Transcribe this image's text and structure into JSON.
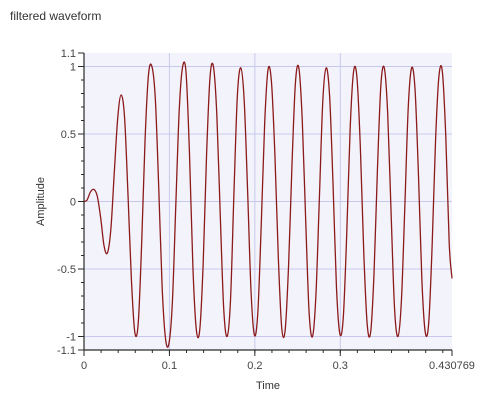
{
  "window": {
    "title": "filtered waveform"
  },
  "chart_data": {
    "type": "line",
    "title": "filtered waveform",
    "xlabel": "Time",
    "ylabel": "Amplitude",
    "xlim": [
      0,
      0.430769
    ],
    "ylim": [
      -1.1,
      1.1
    ],
    "x_ticks": [
      {
        "value": 0,
        "label": "0"
      },
      {
        "value": 0.1,
        "label": "0.1"
      },
      {
        "value": 0.2,
        "label": "0.2"
      },
      {
        "value": 0.3,
        "label": "0.3"
      },
      {
        "value": 0.430769,
        "label": "0.430769"
      }
    ],
    "y_ticks": [
      {
        "value": -1.1,
        "label": "-1.1"
      },
      {
        "value": -1,
        "label": "-1"
      },
      {
        "value": -0.5,
        "label": "-0.5"
      },
      {
        "value": 0,
        "label": "0"
      },
      {
        "value": 0.5,
        "label": "0.5"
      },
      {
        "value": 1,
        "label": "1"
      },
      {
        "value": 1.1,
        "label": "1.1"
      }
    ],
    "grid": true,
    "colors": {
      "line": "#8b1a1a",
      "plot_background": "#f3f3fb",
      "grid": "#c8c8ee",
      "axis": "#2a2a2a"
    },
    "series": [
      {
        "name": "",
        "x": [
          0,
          0.0035,
          0.0075,
          0.0115,
          0.0155,
          0.0195,
          0.0235,
          0.0275,
          0.0315,
          0.0355,
          0.0395,
          0.0435,
          0.0475,
          0.0515,
          0.0555,
          0.0595,
          0.0635,
          0.0675,
          0.0715,
          0.0755,
          0.0795,
          0.0835,
          0.0875,
          0.0915,
          0.0955,
          0.0995,
          0.1035,
          0.1075,
          0.1115,
          0.1155,
          0.1195,
          0.1235,
          0.1275,
          0.1315,
          0.1355,
          0.1395,
          0.1435,
          0.1475,
          0.1515,
          0.1555,
          0.1595,
          0.1635,
          0.1675,
          0.1715,
          0.1755,
          0.1795,
          0.1835,
          0.1875,
          0.1915,
          0.1955,
          0.1995,
          0.2035,
          0.2075,
          0.2115,
          0.2155,
          0.2195,
          0.2235,
          0.2275,
          0.2315,
          0.2355,
          0.2395,
          0.2435,
          0.2475,
          0.2515,
          0.2555,
          0.2595,
          0.2635,
          0.2675,
          0.2715,
          0.2755,
          0.2795,
          0.2835,
          0.2875,
          0.2915,
          0.2955,
          0.2995,
          0.3035,
          0.3075,
          0.3115,
          0.3155,
          0.3195,
          0.3235,
          0.3275,
          0.3315,
          0.3355,
          0.3395,
          0.3435,
          0.3475,
          0.3515,
          0.3555,
          0.3595,
          0.3635,
          0.3675,
          0.3715,
          0.3755,
          0.3795,
          0.3835,
          0.3875,
          0.3915,
          0.3955,
          0.3995,
          0.4035,
          0.4075,
          0.4115,
          0.4155,
          0.4195,
          0.4235,
          0.4275,
          0.4308
        ],
        "y": [
          0,
          0.01,
          0.07,
          0.09,
          0.04,
          -0.12,
          -0.33,
          -0.38,
          -0.2,
          0.22,
          0.62,
          0.79,
          0.62,
          0.05,
          -0.58,
          -0.97,
          -0.9,
          -0.31,
          0.46,
          0.94,
          1.0,
          0.76,
          0.1,
          -0.64,
          -1.02,
          -1.05,
          -0.74,
          -0.02,
          0.68,
          1.0,
          0.95,
          0.35,
          -0.49,
          -0.95,
          -0.95,
          -0.46,
          0.35,
          0.92,
          1.0,
          0.64,
          -0.1,
          -0.79,
          -1.0,
          -0.73,
          0.06,
          0.78,
          0.99,
          0.75,
          0.08,
          -0.66,
          -0.99,
          -0.82,
          -0.17,
          0.58,
          0.98,
          0.88,
          0.34,
          -0.42,
          -0.94,
          -0.95,
          -0.47,
          0.28,
          0.88,
          0.99,
          0.6,
          -0.14,
          -0.82,
          -1.0,
          -0.69,
          0.02,
          0.74,
          0.99,
          0.78,
          0.13,
          -0.63,
          -0.98,
          -0.86,
          -0.25,
          0.53,
          0.96,
          0.92,
          0.4,
          -0.38,
          -0.91,
          -0.97,
          -0.53,
          0.24,
          0.86,
          0.99,
          0.65,
          -0.09,
          -0.79,
          -1.0,
          -0.74,
          -0.05,
          0.69,
          0.99,
          0.83,
          0.2,
          -0.58,
          -0.97,
          -0.9,
          -0.33,
          0.45,
          0.93,
          0.96,
          0.48,
          -0.31,
          -0.57
        ]
      }
    ]
  }
}
